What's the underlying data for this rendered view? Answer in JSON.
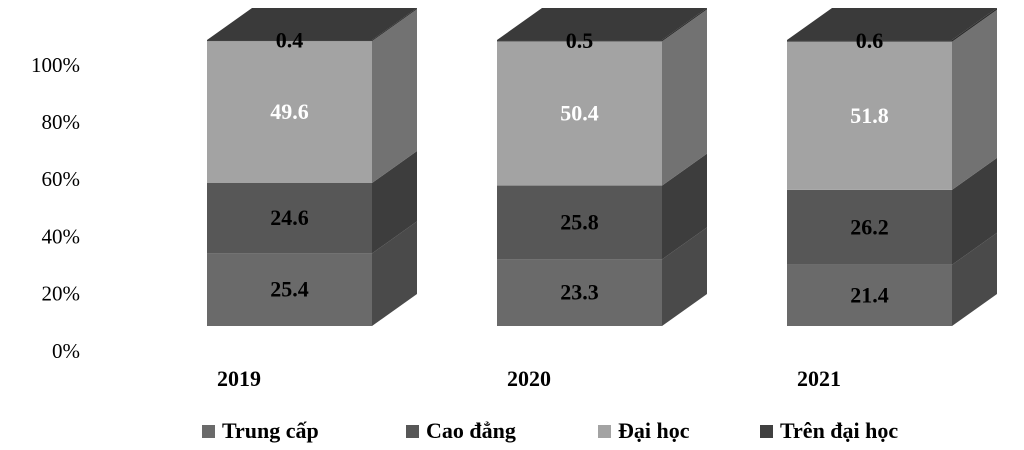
{
  "chart_data": {
    "type": "stacked-bar-3d",
    "categories": [
      "2019",
      "2020",
      "2021"
    ],
    "series": [
      {
        "name": "Trung cấp",
        "color": "#6a6a6a",
        "label_color": "#000000",
        "values": [
          25.4,
          23.3,
          21.4
        ]
      },
      {
        "name": "Cao đẳng",
        "color": "#575757",
        "label_color": "#000000",
        "values": [
          24.6,
          25.8,
          26.2
        ]
      },
      {
        "name": "Đại học",
        "color": "#a3a3a3",
        "label_color": "#ffffff",
        "values": [
          49.6,
          50.4,
          51.8
        ]
      },
      {
        "name": "Trên đại học",
        "color": "#404040",
        "label_color": "#000000",
        "values": [
          0.4,
          0.5,
          0.6
        ]
      }
    ],
    "ylim": [
      0,
      100
    ],
    "yticks": [
      {
        "value": 0,
        "label": "0%"
      },
      {
        "value": 20,
        "label": "20%"
      },
      {
        "value": 40,
        "label": "40%"
      },
      {
        "value": 60,
        "label": "60%"
      },
      {
        "value": 80,
        "label": "80%"
      },
      {
        "value": 100,
        "label": "100%"
      }
    ],
    "legend": "bottom"
  }
}
